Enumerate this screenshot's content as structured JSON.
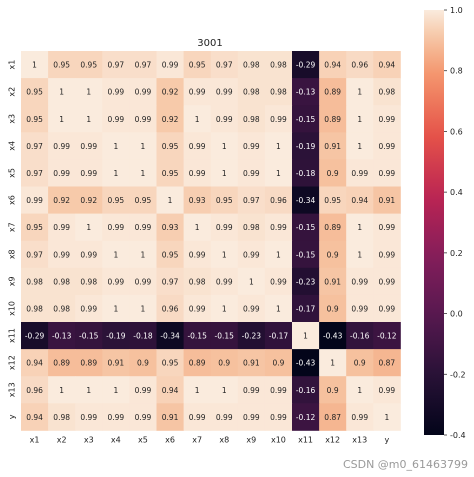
{
  "chart_data": {
    "type": "heatmap",
    "title": "3001",
    "row_labels": [
      "x1",
      "x2",
      "x3",
      "x4",
      "x5",
      "x6",
      "x7",
      "x8",
      "x9",
      "x10",
      "x11",
      "x12",
      "x13",
      "y"
    ],
    "col_labels": [
      "x1",
      "x2",
      "x3",
      "x4",
      "x5",
      "x6",
      "x7",
      "x8",
      "x9",
      "x10",
      "x11",
      "x12",
      "x13",
      "y"
    ],
    "values": [
      [
        1,
        0.95,
        0.95,
        0.97,
        0.97,
        0.99,
        0.95,
        0.97,
        0.98,
        0.98,
        -0.29,
        0.94,
        0.96,
        0.94
      ],
      [
        0.95,
        1,
        1,
        0.99,
        0.99,
        0.92,
        0.99,
        0.99,
        0.98,
        0.98,
        -0.13,
        0.89,
        1,
        0.98
      ],
      [
        0.95,
        1,
        1,
        0.99,
        0.99,
        0.92,
        1,
        0.99,
        0.98,
        0.99,
        -0.15,
        0.89,
        1,
        0.99
      ],
      [
        0.97,
        0.99,
        0.99,
        1,
        1,
        0.95,
        0.99,
        1,
        0.99,
        1,
        -0.19,
        0.91,
        1,
        0.99
      ],
      [
        0.97,
        0.99,
        0.99,
        1,
        1,
        0.95,
        0.99,
        1,
        0.99,
        1,
        -0.18,
        0.9,
        0.99,
        0.99
      ],
      [
        0.99,
        0.92,
        0.92,
        0.95,
        0.95,
        1,
        0.93,
        0.95,
        0.97,
        0.96,
        -0.34,
        0.95,
        0.94,
        0.91
      ],
      [
        0.95,
        0.99,
        1,
        0.99,
        0.99,
        0.93,
        1,
        0.99,
        0.98,
        0.99,
        -0.15,
        0.89,
        1,
        0.99
      ],
      [
        0.97,
        0.99,
        0.99,
        1,
        1,
        0.95,
        0.99,
        1,
        0.99,
        1,
        -0.15,
        0.9,
        1,
        0.99
      ],
      [
        0.98,
        0.98,
        0.98,
        0.99,
        0.99,
        0.97,
        0.98,
        0.99,
        1,
        0.99,
        -0.23,
        0.91,
        0.99,
        0.99
      ],
      [
        0.98,
        0.98,
        0.99,
        1,
        1,
        0.96,
        0.99,
        1,
        0.99,
        1,
        -0.17,
        0.9,
        0.99,
        0.99
      ],
      [
        -0.29,
        -0.13,
        -0.15,
        -0.19,
        -0.18,
        -0.34,
        -0.15,
        -0.15,
        -0.23,
        -0.17,
        1,
        -0.43,
        -0.16,
        -0.12
      ],
      [
        0.94,
        0.89,
        0.89,
        0.91,
        0.9,
        0.95,
        0.89,
        0.9,
        0.91,
        0.9,
        -0.43,
        1,
        0.9,
        0.87
      ],
      [
        0.96,
        1,
        1,
        1,
        0.99,
        0.94,
        1,
        1,
        0.99,
        0.99,
        -0.16,
        0.9,
        1,
        0.99
      ],
      [
        0.94,
        0.98,
        0.99,
        0.99,
        0.99,
        0.91,
        0.99,
        0.99,
        0.99,
        0.99,
        -0.12,
        0.87,
        0.99,
        1
      ]
    ],
    "colorbar": {
      "min": -0.4,
      "max": 1.0,
      "ticks": [
        "1.0",
        "0.8",
        "0.6",
        "0.4",
        "0.2",
        "0.0",
        "-0.2",
        "-0.4"
      ]
    },
    "colormap": "rocket",
    "annotated": true,
    "grid": false
  },
  "watermark": "CSDN @m0_61463799"
}
